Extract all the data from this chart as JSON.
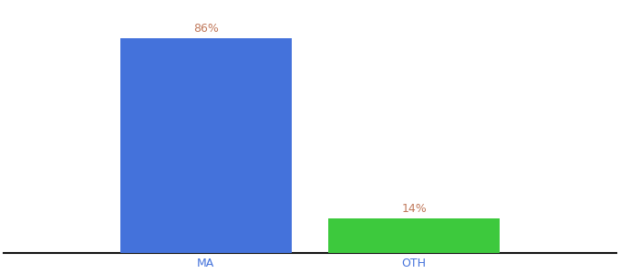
{
  "categories": [
    "MA",
    "OTH"
  ],
  "values": [
    86,
    14
  ],
  "bar_colors": [
    "#4472db",
    "#3dc93d"
  ],
  "label_texts": [
    "86%",
    "14%"
  ],
  "label_color": "#c0785a",
  "label_fontsize": 9,
  "tick_label_color": "#4472db",
  "tick_fontsize": 9,
  "background_color": "#ffffff",
  "ylim": [
    0,
    100
  ],
  "bar_width": 0.28,
  "x_positions": [
    0.33,
    0.67
  ],
  "xlim": [
    0,
    1
  ],
  "figsize": [
    6.8,
    3.0
  ],
  "dpi": 100,
  "bottom_spine_color": "#111111"
}
